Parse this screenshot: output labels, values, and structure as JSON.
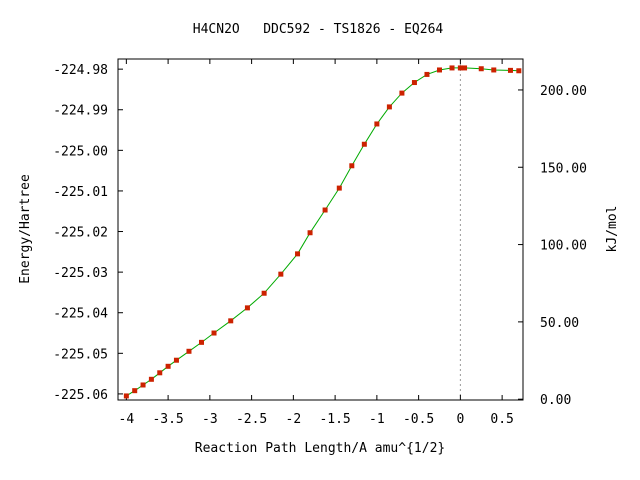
{
  "chart_data": {
    "type": "line",
    "title": "H4CN2O   DDC592 - TS1826 - EQ264",
    "xlabel": "Reaction Path Length/A amu^{1/2}",
    "ylabel": "Energy/Hartree",
    "y2label": "kJ/mol",
    "xlim": [
      -4.1,
      0.75
    ],
    "ylim": [
      -225.0615,
      -224.9775
    ],
    "x_ticks": [
      -4,
      -3.5,
      -3,
      -2.5,
      -2,
      -1.5,
      -1,
      -0.5,
      0,
      0.5
    ],
    "x_tick_labels": [
      "-4",
      "-3.5",
      "-3",
      "-2.5",
      "-2",
      "-1.5",
      "-1",
      "-0.5",
      "0",
      "0.5"
    ],
    "y_ticks": [
      -224.98,
      -224.99,
      -225.0,
      -225.01,
      -225.02,
      -225.03,
      -225.04,
      -225.05,
      -225.06
    ],
    "y_tick_labels": [
      "-224.98",
      "-224.99",
      "-225.00",
      "-225.01",
      "-225.02",
      "-225.03",
      "-225.04",
      "-225.05",
      "-225.06"
    ],
    "y2_ticks": [
      0,
      50,
      100,
      150,
      200
    ],
    "y2_tick_labels": [
      "0.00",
      "50.00",
      "100.00",
      "150.00",
      "200.00"
    ],
    "y2_zero_hartree": -225.0613,
    "hartree_to_kj": 2625.5,
    "ts_marker_x": 0,
    "grid": false,
    "colors": {
      "line": "#00aa00",
      "marker": "#cc2200",
      "ts_line": "#999999",
      "axis": "#000000"
    },
    "series": [
      {
        "x": [
          -4.0,
          -3.9,
          -3.8,
          -3.7,
          -3.6,
          -3.5,
          -3.4,
          -3.25,
          -3.1,
          -2.95,
          -2.75,
          -2.55,
          -2.35,
          -2.15,
          -1.95,
          -1.8,
          -1.62,
          -1.45,
          -1.3,
          -1.15,
          -1.0,
          -0.85,
          -0.7,
          -0.55,
          -0.4,
          -0.25,
          -0.1,
          0.0,
          0.05,
          0.25,
          0.4,
          0.6,
          0.7
        ],
        "y": [
          -225.0605,
          -225.0592,
          -225.0578,
          -225.0564,
          -225.0548,
          -225.0532,
          -225.0517,
          -225.0495,
          -225.0473,
          -225.045,
          -225.042,
          -225.0388,
          -225.0352,
          -225.0305,
          -225.0255,
          -225.0203,
          -225.0147,
          -225.0093,
          -225.0038,
          -224.9985,
          -224.9935,
          -224.9893,
          -224.9859,
          -224.9833,
          -224.9813,
          -224.9802,
          -224.9797,
          -224.9797,
          -224.9797,
          -224.9799,
          -224.9802,
          -224.9803,
          -224.9804
        ]
      }
    ]
  }
}
